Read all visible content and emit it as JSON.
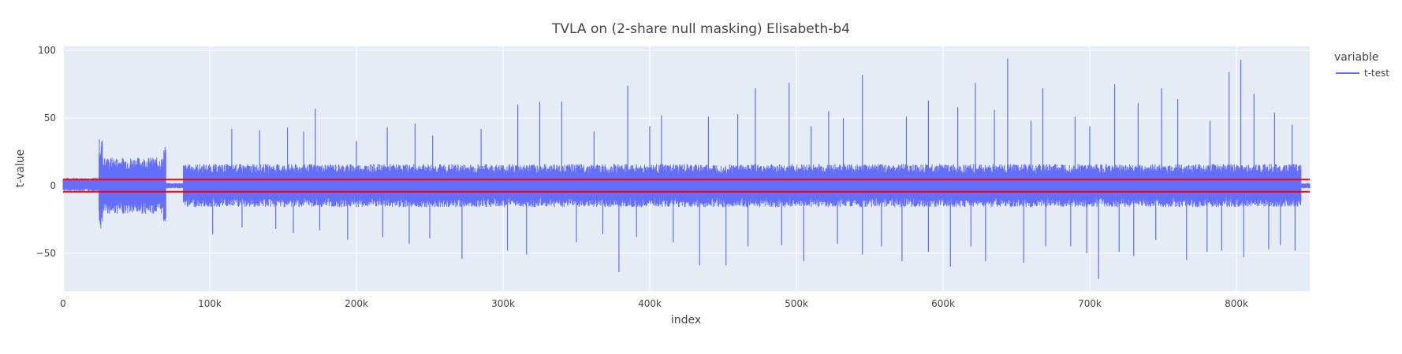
{
  "chart_data": {
    "type": "line",
    "title": "TVLA on (2-share null masking) Elisabeth-b4",
    "xlabel": "index",
    "ylabel": "t-value",
    "xlim": [
      0,
      850000
    ],
    "ylim": [
      -78,
      103
    ],
    "x_ticks": [
      0,
      100000,
      200000,
      300000,
      400000,
      500000,
      600000,
      700000,
      800000
    ],
    "x_tick_labels": [
      "0",
      "100k",
      "200k",
      "300k",
      "400k",
      "500k",
      "600k",
      "700k",
      "800k"
    ],
    "y_ticks": [
      -50,
      0,
      50,
      100
    ],
    "y_tick_labels": [
      "−50",
      "0",
      "50",
      "100"
    ],
    "grid": true,
    "legend": {
      "title": "variable",
      "placement": "top-right"
    },
    "series": [
      {
        "name": "t-test",
        "color": "#636efa",
        "segments": [
          {
            "x_start": 0,
            "x_end": 24500,
            "min": -4,
            "max": 6
          },
          {
            "x_start": 24500,
            "x_end": 27000,
            "min": -33,
            "max": 35
          },
          {
            "x_start": 27000,
            "x_end": 68500,
            "min": -21,
            "max": 21
          },
          {
            "x_start": 68500,
            "x_end": 70000,
            "min": -28,
            "max": 30
          },
          {
            "x_start": 70000,
            "x_end": 82000,
            "min": -2,
            "max": 2
          },
          {
            "x_start": 82000,
            "x_end": 844000,
            "min": -16,
            "max": 16
          },
          {
            "x_start": 844000,
            "x_end": 850000,
            "min": -2,
            "max": 2
          }
        ],
        "spikes": [
          {
            "x": 115000,
            "y": 42
          },
          {
            "x": 134000,
            "y": 41
          },
          {
            "x": 153000,
            "y": 43
          },
          {
            "x": 164000,
            "y": 40
          },
          {
            "x": 172000,
            "y": 57
          },
          {
            "x": 200000,
            "y": 33
          },
          {
            "x": 221000,
            "y": 43
          },
          {
            "x": 240000,
            "y": 46
          },
          {
            "x": 252000,
            "y": 37
          },
          {
            "x": 285000,
            "y": 42
          },
          {
            "x": 310000,
            "y": 60
          },
          {
            "x": 325000,
            "y": 62
          },
          {
            "x": 340000,
            "y": 62
          },
          {
            "x": 362000,
            "y": 40
          },
          {
            "x": 385000,
            "y": 74
          },
          {
            "x": 400000,
            "y": 44
          },
          {
            "x": 408000,
            "y": 52
          },
          {
            "x": 440000,
            "y": 51
          },
          {
            "x": 460000,
            "y": 53
          },
          {
            "x": 472000,
            "y": 72
          },
          {
            "x": 495000,
            "y": 76
          },
          {
            "x": 510000,
            "y": 44
          },
          {
            "x": 522000,
            "y": 55
          },
          {
            "x": 532000,
            "y": 50
          },
          {
            "x": 545000,
            "y": 82
          },
          {
            "x": 575000,
            "y": 51
          },
          {
            "x": 590000,
            "y": 63
          },
          {
            "x": 610000,
            "y": 58
          },
          {
            "x": 622000,
            "y": 76
          },
          {
            "x": 635000,
            "y": 56
          },
          {
            "x": 644000,
            "y": 94
          },
          {
            "x": 660000,
            "y": 48
          },
          {
            "x": 668000,
            "y": 72
          },
          {
            "x": 690000,
            "y": 51
          },
          {
            "x": 700000,
            "y": 44
          },
          {
            "x": 717000,
            "y": 75
          },
          {
            "x": 733000,
            "y": 61
          },
          {
            "x": 749000,
            "y": 72
          },
          {
            "x": 760000,
            "y": 64
          },
          {
            "x": 782000,
            "y": 48
          },
          {
            "x": 795000,
            "y": 84
          },
          {
            "x": 803000,
            "y": 93
          },
          {
            "x": 812000,
            "y": 68
          },
          {
            "x": 826000,
            "y": 54
          },
          {
            "x": 838000,
            "y": 45
          },
          {
            "x": 86000,
            "y": -14
          },
          {
            "x": 102000,
            "y": -36
          },
          {
            "x": 122000,
            "y": -31
          },
          {
            "x": 145000,
            "y": -32
          },
          {
            "x": 157000,
            "y": -35
          },
          {
            "x": 175000,
            "y": -33
          },
          {
            "x": 194000,
            "y": -40
          },
          {
            "x": 218000,
            "y": -38
          },
          {
            "x": 236000,
            "y": -43
          },
          {
            "x": 250000,
            "y": -39
          },
          {
            "x": 272000,
            "y": -54
          },
          {
            "x": 303000,
            "y": -48
          },
          {
            "x": 316000,
            "y": -51
          },
          {
            "x": 350000,
            "y": -42
          },
          {
            "x": 368000,
            "y": -36
          },
          {
            "x": 379000,
            "y": -64
          },
          {
            "x": 391000,
            "y": -38
          },
          {
            "x": 416000,
            "y": -42
          },
          {
            "x": 434000,
            "y": -59
          },
          {
            "x": 452000,
            "y": -59
          },
          {
            "x": 467000,
            "y": -45
          },
          {
            "x": 490000,
            "y": -44
          },
          {
            "x": 505000,
            "y": -56
          },
          {
            "x": 528000,
            "y": -43
          },
          {
            "x": 545000,
            "y": -51
          },
          {
            "x": 558000,
            "y": -45
          },
          {
            "x": 572000,
            "y": -56
          },
          {
            "x": 590000,
            "y": -49
          },
          {
            "x": 605000,
            "y": -60
          },
          {
            "x": 619000,
            "y": -45
          },
          {
            "x": 629000,
            "y": -56
          },
          {
            "x": 655000,
            "y": -57
          },
          {
            "x": 670000,
            "y": -45
          },
          {
            "x": 687000,
            "y": -45
          },
          {
            "x": 698000,
            "y": -50
          },
          {
            "x": 706000,
            "y": -69
          },
          {
            "x": 720000,
            "y": -49
          },
          {
            "x": 730000,
            "y": -52
          },
          {
            "x": 745000,
            "y": -40
          },
          {
            "x": 766000,
            "y": -55
          },
          {
            "x": 780000,
            "y": -49
          },
          {
            "x": 790000,
            "y": -48
          },
          {
            "x": 805000,
            "y": -53
          },
          {
            "x": 822000,
            "y": -47
          },
          {
            "x": 830000,
            "y": -44
          },
          {
            "x": 840000,
            "y": -48
          }
        ]
      }
    ],
    "threshold_lines": [
      {
        "y": 4.5,
        "color": "#ff0000"
      },
      {
        "y": -4.5,
        "color": "#ff0000"
      }
    ]
  }
}
